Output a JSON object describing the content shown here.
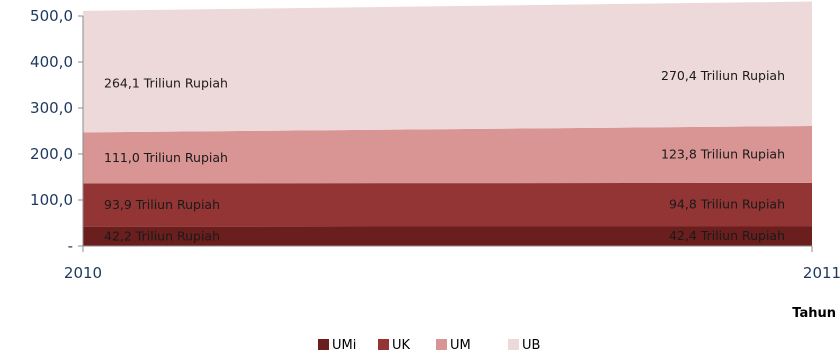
{
  "chart_data": {
    "type": "area",
    "stacked": true,
    "x": [
      "2010",
      "2011"
    ],
    "xlabel": "Tahun",
    "ylim": [
      0,
      500
    ],
    "yticks": [
      "-",
      "100,0",
      "200,0",
      "300,0",
      "400,0",
      "500,0"
    ],
    "series": [
      {
        "name": "UMi",
        "values": [
          42.2,
          42.4
        ],
        "labels": [
          "42,2 Triliun Rupiah",
          "42,4 Triliun Rupiah"
        ],
        "color": "#6b1e1e"
      },
      {
        "name": "UK",
        "values": [
          93.9,
          94.8
        ],
        "labels": [
          "93,9 Triliun Rupiah",
          "94,8 Triliun Rupiah"
        ],
        "color": "#933535"
      },
      {
        "name": "UM",
        "values": [
          111.0,
          123.8
        ],
        "labels": [
          "111,0 Triliun Rupiah",
          "123,8 Triliun Rupiah"
        ],
        "color": "#d99594"
      },
      {
        "name": "UB",
        "values": [
          264.1,
          270.4
        ],
        "labels": [
          "264,1 Triliun Rupiah",
          "270,4 Triliun Rupiah"
        ],
        "color": "#eed9da"
      }
    ],
    "legend_position": "bottom-center",
    "grid": false
  }
}
